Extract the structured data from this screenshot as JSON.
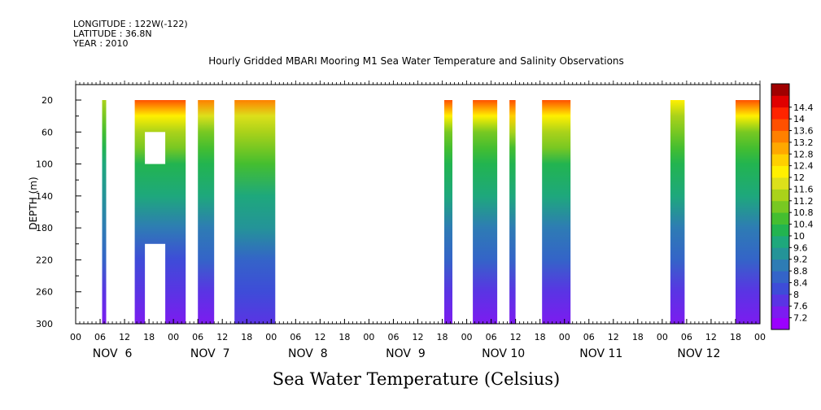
{
  "header": {
    "longitude": "LONGITUDE : 122W(-122)",
    "latitude": "LATITUDE : 36.8N",
    "year": "YEAR : 2010"
  },
  "chart_data": {
    "type": "heatmap",
    "title": "Hourly Gridded MBARI Mooring M1 Sea Water Temperature and Salinity Observations",
    "subtitle": "Sea Water Temperature (Celsius)",
    "ylabel": "DEPTH (m)",
    "ylim": [
      300,
      10
    ],
    "y_inverted": true,
    "y_ticks": [
      20,
      60,
      100,
      140,
      180,
      220,
      260,
      300
    ],
    "xlim_hours": [
      0,
      168
    ],
    "hour_ticks": [
      "00",
      "06",
      "12",
      "18",
      "00",
      "06",
      "12",
      "18",
      "00",
      "06",
      "12",
      "18",
      "00",
      "06",
      "12",
      "18",
      "00",
      "06",
      "12",
      "18",
      "00",
      "06",
      "12",
      "18",
      "00",
      "06",
      "12",
      "18",
      "00"
    ],
    "day_labels": [
      "NOV  6",
      "NOV  7",
      "NOV  8",
      "NOV  9",
      "NOV 10",
      "NOV 11",
      "NOV 12"
    ],
    "colorbar": {
      "levels": [
        7.2,
        7.6,
        8,
        8.4,
        8.8,
        9.2,
        9.6,
        10,
        10.4,
        10.8,
        11.2,
        11.6,
        12,
        12.4,
        12.8,
        13.2,
        13.6,
        14,
        14.4
      ],
      "colors": [
        "#9b00ff",
        "#7c1cf0",
        "#5a34e4",
        "#3e4cd8",
        "#3464c8",
        "#2e7cb4",
        "#249498",
        "#1ea87c",
        "#22b450",
        "#44be30",
        "#78c822",
        "#aad21a",
        "#dce01a",
        "#fff000",
        "#ffd000",
        "#ffa800",
        "#ff8000",
        "#ff5000",
        "#ff2400",
        "#e00000",
        "#a00000"
      ]
    },
    "profile_depths": [
      20,
      40,
      60,
      80,
      100,
      140,
      180,
      220,
      260,
      300
    ],
    "columns": [
      {
        "start_hour": 6.5,
        "end_hour": 7.5,
        "profile": [
          11.3,
          11.0,
          10.6,
          10.2,
          9.9,
          9.4,
          8.9,
          8.4,
          7.9,
          7.4
        ]
      },
      {
        "start_hour": 14.5,
        "end_hour": 27,
        "profile": [
          13.8,
          12.3,
          11.3,
          10.8,
          10.3,
          9.6,
          9.0,
          8.3,
          7.8,
          7.3
        ]
      },
      {
        "start_hour": 30,
        "end_hour": 34,
        "profile": [
          13.2,
          11.8,
          11.1,
          10.7,
          10.3,
          9.6,
          9.0,
          8.4,
          7.9,
          7.5
        ]
      },
      {
        "start_hour": 39,
        "end_hour": 49,
        "profile": [
          13.4,
          11.9,
          11.2,
          10.8,
          10.4,
          9.9,
          9.3,
          8.6,
          8.0,
          7.6
        ]
      },
      {
        "start_hour": 90.5,
        "end_hour": 92.5,
        "profile": [
          13.8,
          12.3,
          11.1,
          10.6,
          10.2,
          9.6,
          9.0,
          8.4,
          7.9,
          7.5
        ]
      },
      {
        "start_hour": 97.5,
        "end_hour": 103.5,
        "profile": [
          13.7,
          12.1,
          11.1,
          10.7,
          10.3,
          9.7,
          9.1,
          8.4,
          7.9,
          7.4
        ]
      },
      {
        "start_hour": 106.5,
        "end_hour": 108,
        "profile": [
          13.8,
          12.4,
          11.2,
          10.7,
          10.2,
          9.6,
          9.0,
          8.4,
          7.9,
          7.5
        ]
      },
      {
        "start_hour": 114.5,
        "end_hour": 121.5,
        "profile": [
          13.7,
          12.2,
          11.3,
          10.8,
          10.3,
          9.7,
          9.0,
          8.4,
          7.9,
          7.4
        ]
      },
      {
        "start_hour": 146,
        "end_hour": 149.5,
        "profile": [
          12.0,
          11.4,
          11.0,
          10.6,
          10.2,
          9.6,
          9.0,
          8.4,
          7.9,
          7.5
        ]
      },
      {
        "start_hour": 162,
        "end_hour": 168,
        "profile": [
          13.7,
          12.0,
          11.1,
          10.7,
          10.2,
          9.6,
          9.0,
          8.4,
          7.8,
          7.3
        ]
      }
    ],
    "gaps": [
      {
        "start_hour": 17,
        "end_hour": 22,
        "depth_top": 60,
        "depth_bottom": 100
      },
      {
        "start_hour": 17,
        "end_hour": 22,
        "depth_top": 200,
        "depth_bottom": 300
      }
    ]
  }
}
